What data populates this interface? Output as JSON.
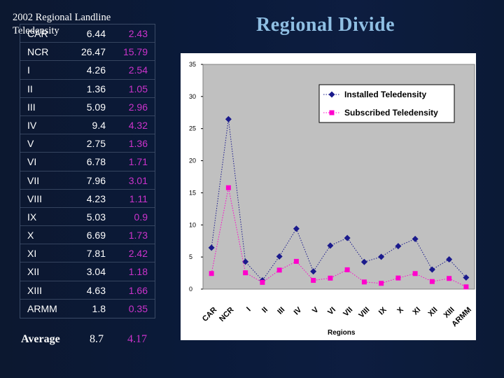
{
  "title": "Regional  Divide",
  "table": {
    "caption": "2002   Regional Landline Teledensity",
    "rows": [
      {
        "region": "CAR",
        "installed": "6.44",
        "subscribed": "2.43"
      },
      {
        "region": "NCR",
        "installed": "26.47",
        "subscribed": "15.79"
      },
      {
        "region": "I",
        "installed": "4.26",
        "subscribed": "2.54"
      },
      {
        "region": "II",
        "installed": "1.36",
        "subscribed": "1.05"
      },
      {
        "region": "III",
        "installed": "5.09",
        "subscribed": "2.96"
      },
      {
        "region": "IV",
        "installed": "9.4",
        "subscribed": "4.32"
      },
      {
        "region": "V",
        "installed": "2.75",
        "subscribed": "1.36"
      },
      {
        "region": "VI",
        "installed": "6.78",
        "subscribed": "1.71"
      },
      {
        "region": "VII",
        "installed": "7.96",
        "subscribed": "3.01"
      },
      {
        "region": "VIII",
        "installed": "4.23",
        "subscribed": "1.11"
      },
      {
        "region": "IX",
        "installed": "5.03",
        "subscribed": "0.9"
      },
      {
        "region": "X",
        "installed": "6.69",
        "subscribed": "1.73"
      },
      {
        "region": "XI",
        "installed": "7.81",
        "subscribed": "2.42"
      },
      {
        "region": "XII",
        "installed": "3.04",
        "subscribed": "1.18"
      },
      {
        "region": "XIII",
        "installed": "4.63",
        "subscribed": "1.66"
      },
      {
        "region": "ARMM",
        "installed": "1.8",
        "subscribed": "0.35"
      }
    ],
    "average": {
      "label": "Average",
      "installed": "8.7",
      "subscribed": "4.17"
    }
  },
  "colors": {
    "installed": "#1a1a8c",
    "subscribed": "#ff00cc",
    "plot_bg": "#c0c0c0",
    "title": "#8fbfe3"
  },
  "chart_data": {
    "type": "line",
    "categories": [
      "CAR",
      "NCR",
      "I",
      "II",
      "III",
      "IV",
      "V",
      "VI",
      "VII",
      "VIII",
      "IX",
      "X",
      "XI",
      "XII",
      "XIII",
      "ARMM"
    ],
    "series": [
      {
        "name": "Installed Teledensity",
        "values": [
          6.44,
          26.47,
          4.26,
          1.36,
          5.09,
          9.4,
          2.75,
          6.78,
          7.96,
          4.23,
          5.03,
          6.69,
          7.81,
          3.04,
          4.63,
          1.8
        ]
      },
      {
        "name": "Subscribed Teledensity",
        "values": [
          2.43,
          15.79,
          2.54,
          1.05,
          2.96,
          4.32,
          1.36,
          1.71,
          3.01,
          1.11,
          0.9,
          1.73,
          2.42,
          1.18,
          1.66,
          0.35
        ]
      }
    ],
    "xlabel": "Regions",
    "ylabel": "",
    "ylim": [
      0,
      35
    ],
    "yticks": [
      "0",
      "5",
      "10",
      "15",
      "20",
      "25",
      "30",
      "35"
    ],
    "grid": false,
    "legend": "top-right"
  }
}
